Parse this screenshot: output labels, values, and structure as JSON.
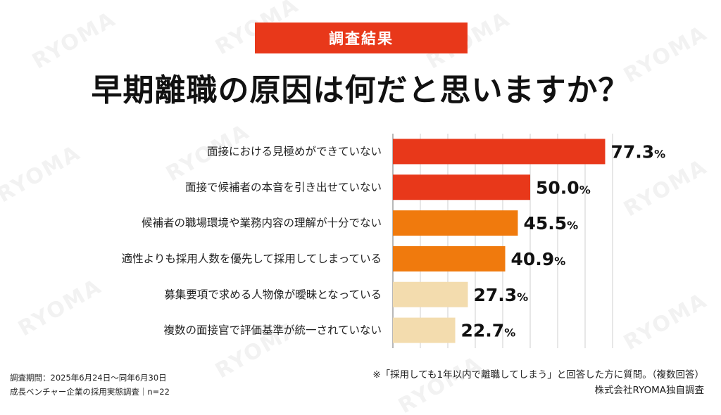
{
  "badge": "調査結果",
  "title": "早期離職の原因は何だと思いますか？",
  "watermark_text": "RYOMA",
  "colors": {
    "badge_bg": "#e8381a",
    "bar_dark": "#e8381a",
    "bar_mid": "#f07a0d",
    "bar_light": "#f3dcae"
  },
  "chart_data": {
    "type": "bar",
    "orientation": "horizontal",
    "unit": "%",
    "categories": [
      "面接における見極めができていない",
      "面接で候補者の本音を引き出せていない",
      "候補者の職場環境や業務内容の理解が十分でない",
      "適性よりも採用人数を優先して採用してしまっている",
      "募集要項で求める人物像が曖昧となっている",
      "複数の面接官で評価基準が統一されていない"
    ],
    "values": [
      77.3,
      50.0,
      45.5,
      40.9,
      27.3,
      22.7
    ],
    "value_labels": [
      "77.3",
      "50.0",
      "45.5",
      "40.9",
      "27.3",
      "22.7"
    ],
    "bar_colors": [
      "#e8381a",
      "#e8381a",
      "#f07a0d",
      "#f07a0d",
      "#f3dcae",
      "#f3dcae"
    ],
    "xlim": [
      0,
      80
    ],
    "grid": true
  },
  "footer": {
    "period": "調査期間：2025年6月24日〜同年6月30日",
    "survey": "成長ベンチャー企業の採用実態調査｜n=22",
    "note": "※「採用しても1年以内で離職してしまう」と回答した方に質問。（複数回答）",
    "source": "株式会社RYOMA独自調査"
  }
}
